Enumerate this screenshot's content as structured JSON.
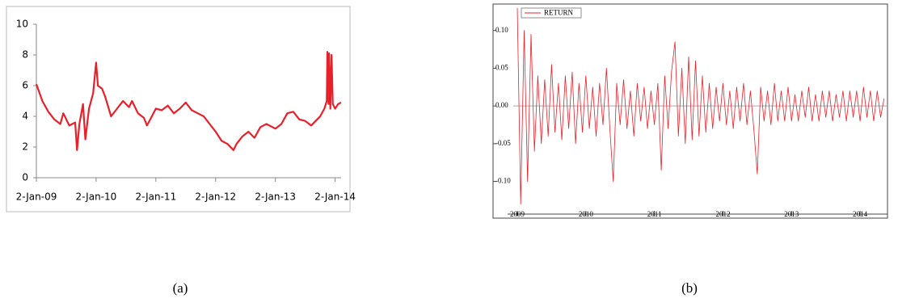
{
  "chart_data": [
    {
      "type": "line",
      "x": [
        2009.0,
        2009.1,
        2009.2,
        2009.3,
        2009.4,
        2009.45,
        2009.55,
        2009.65,
        2009.68,
        2009.72,
        2009.78,
        2009.82,
        2009.88,
        2009.95,
        2010.0,
        2010.03,
        2010.1,
        2010.15,
        2010.25,
        2010.35,
        2010.45,
        2010.55,
        2010.6,
        2010.7,
        2010.8,
        2010.85,
        2010.92,
        2011.0,
        2011.1,
        2011.2,
        2011.3,
        2011.4,
        2011.5,
        2011.6,
        2011.7,
        2011.8,
        2011.9,
        2012.0,
        2012.1,
        2012.2,
        2012.3,
        2012.35,
        2012.45,
        2012.55,
        2012.65,
        2012.75,
        2012.85,
        2013.0,
        2013.1,
        2013.2,
        2013.3,
        2013.4,
        2013.5,
        2013.6,
        2013.7,
        2013.75,
        2013.82,
        2013.86,
        2013.87,
        2013.89,
        2013.9,
        2013.92,
        2013.94,
        2013.96,
        2014.0,
        2014.05,
        2014.1
      ],
      "series": [
        {
          "color": "#e8202a",
          "values": [
            6.1,
            5.0,
            4.3,
            3.8,
            3.5,
            4.2,
            3.4,
            3.6,
            1.8,
            3.5,
            4.8,
            2.5,
            4.5,
            5.5,
            7.5,
            6.0,
            5.8,
            5.3,
            4.0,
            4.5,
            5.0,
            4.6,
            5.0,
            4.2,
            3.9,
            3.4,
            3.9,
            4.5,
            4.4,
            4.7,
            4.2,
            4.5,
            4.9,
            4.4,
            4.2,
            4.0,
            3.5,
            3.0,
            2.4,
            2.2,
            1.8,
            2.2,
            2.7,
            3.0,
            2.6,
            3.3,
            3.5,
            3.2,
            3.5,
            4.2,
            4.3,
            3.8,
            3.7,
            3.4,
            3.8,
            4.0,
            4.5,
            5.0,
            8.2,
            4.8,
            8.1,
            4.5,
            8.0,
            4.8,
            4.5,
            4.8,
            4.9
          ]
        }
      ],
      "xlim": [
        2009.0,
        2014.1
      ],
      "xticks": [
        {
          "value": 2009.0,
          "label": "2-Jan-09"
        },
        {
          "value": 2010.0,
          "label": "2-Jan-10"
        },
        {
          "value": 2011.0,
          "label": "2-Jan-11"
        },
        {
          "value": 2012.0,
          "label": "2-Jan-12"
        },
        {
          "value": 2013.0,
          "label": "2-Jan-13"
        },
        {
          "value": 2014.0,
          "label": "2-Jan-14"
        }
      ],
      "ylim": [
        0,
        10
      ],
      "yticks": [
        0,
        2,
        4,
        6,
        8,
        10
      ],
      "grid": false
    },
    {
      "type": "line",
      "x": [
        2009.0,
        2009.05,
        2009.1,
        2009.15,
        2009.2,
        2009.25,
        2009.3,
        2009.35,
        2009.4,
        2009.45,
        2009.5,
        2009.55,
        2009.6,
        2009.65,
        2009.7,
        2009.75,
        2009.8,
        2009.85,
        2009.9,
        2009.95,
        2010.0,
        2010.05,
        2010.1,
        2010.15,
        2010.2,
        2010.25,
        2010.3,
        2010.35,
        2010.4,
        2010.45,
        2010.5,
        2010.55,
        2010.6,
        2010.65,
        2010.7,
        2010.75,
        2010.8,
        2010.85,
        2010.9,
        2010.95,
        2011.0,
        2011.05,
        2011.1,
        2011.15,
        2011.2,
        2011.25,
        2011.3,
        2011.35,
        2011.4,
        2011.45,
        2011.5,
        2011.55,
        2011.6,
        2011.65,
        2011.7,
        2011.75,
        2011.8,
        2011.85,
        2011.9,
        2011.95,
        2012.0,
        2012.05,
        2012.1,
        2012.15,
        2012.2,
        2012.25,
        2012.3,
        2012.35,
        2012.4,
        2012.45,
        2012.5,
        2012.55,
        2012.6,
        2012.65,
        2012.7,
        2012.75,
        2012.8,
        2012.85,
        2012.9,
        2012.95,
        2013.0,
        2013.05,
        2013.1,
        2013.15,
        2013.2,
        2013.25,
        2013.3,
        2013.35,
        2013.4,
        2013.45,
        2013.5,
        2013.55,
        2013.6,
        2013.65,
        2013.7,
        2013.75,
        2013.8,
        2013.85,
        2013.9,
        2013.95,
        2014.0,
        2014.05,
        2014.1,
        2014.15,
        2014.2,
        2014.25,
        2014.3,
        2014.35
      ],
      "series": [
        {
          "name": "RETURN",
          "color": "#e8202a",
          "values": [
            0.13,
            -0.13,
            0.1,
            -0.1,
            0.095,
            -0.06,
            0.04,
            -0.05,
            0.035,
            -0.04,
            0.055,
            -0.035,
            0.03,
            -0.045,
            0.04,
            -0.03,
            0.045,
            -0.05,
            0.03,
            -0.035,
            0.04,
            -0.03,
            0.025,
            -0.04,
            0.03,
            -0.025,
            0.05,
            -0.03,
            -0.1,
            0.03,
            -0.025,
            0.035,
            -0.03,
            0.02,
            -0.04,
            0.03,
            -0.02,
            0.025,
            -0.03,
            0.02,
            -0.025,
            0.03,
            -0.085,
            0.04,
            -0.03,
            0.045,
            0.085,
            -0.04,
            0.05,
            -0.05,
            0.065,
            -0.045,
            0.06,
            -0.04,
            0.04,
            -0.035,
            0.03,
            -0.03,
            0.025,
            -0.02,
            0.03,
            -0.025,
            0.02,
            -0.03,
            0.025,
            -0.02,
            0.03,
            -0.025,
            0.02,
            -0.03,
            -0.09,
            0.025,
            -0.02,
            0.02,
            -0.025,
            0.03,
            -0.02,
            0.02,
            -0.02,
            0.025,
            -0.02,
            0.015,
            -0.02,
            0.02,
            -0.015,
            0.025,
            -0.02,
            0.015,
            -0.02,
            0.02,
            -0.015,
            0.02,
            -0.02,
            0.015,
            -0.015,
            0.02,
            -0.02,
            0.02,
            -0.015,
            0.02,
            -0.02,
            0.025,
            -0.015,
            0.02,
            -0.02,
            0.02,
            -0.015,
            0.01
          ]
        }
      ],
      "xlim": [
        2009.0,
        2014.4
      ],
      "xticks": [
        2009,
        2010,
        2011,
        2012,
        2013,
        2014
      ],
      "ylim": [
        -0.14,
        0.135
      ],
      "yticks": [
        {
          "value": 0.1,
          "label": "0.10"
        },
        {
          "value": 0.05,
          "label": "0.05"
        },
        {
          "value": 0.0,
          "label": "0.00"
        },
        {
          "value": -0.05,
          "label": "-0.05"
        },
        {
          "value": -0.1,
          "label": "-0.10"
        }
      ],
      "legend": "upper left",
      "grid": false
    }
  ],
  "captions": [
    "(a)",
    "(b)"
  ]
}
